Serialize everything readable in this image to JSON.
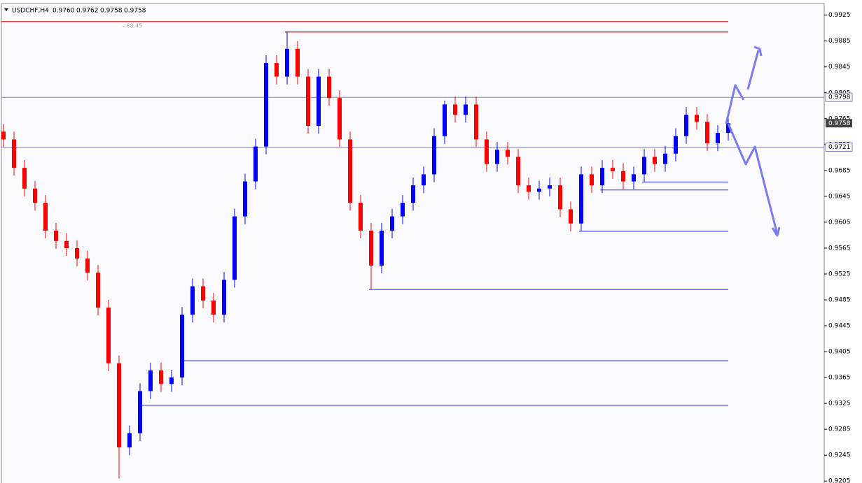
{
  "chart_data": {
    "type": "candlestick",
    "symbol": "USDCHF,H4",
    "quote": [
      "0.9760",
      "0.9762",
      "0.9758",
      "0.9758"
    ],
    "annotation": "- 88.45",
    "up_color": "#0000ff",
    "down_color": "#ff0000",
    "ylim": [
      0.9202,
      0.9943
    ],
    "yticks": [
      0.9925,
      0.9885,
      0.9845,
      0.9805,
      0.9765,
      0.9725,
      0.9685,
      0.9645,
      0.9605,
      0.9565,
      0.9525,
      0.9485,
      0.9445,
      0.9405,
      0.9365,
      0.9325,
      0.9285,
      0.9245,
      0.9205
    ],
    "open": [
      0.9745,
      0.9733,
      0.9689,
      0.9657,
      0.9635,
      0.9592,
      0.9576,
      0.9565,
      0.9549,
      0.9527,
      0.9473,
      0.9387,
      0.9257,
      0.9279,
      0.9344,
      0.9376,
      0.9355,
      0.9365,
      0.9462,
      0.9506,
      0.9484,
      0.9462,
      0.9516,
      0.9614,
      0.9668,
      0.9722,
      0.9851,
      0.983,
      0.9873,
      0.983,
      0.9754,
      0.983,
      0.9797,
      0.9733,
      0.9635,
      0.9592,
      0.9538,
      0.9592,
      0.9614,
      0.9635,
      0.9662,
      0.9679,
      0.9738,
      0.9787,
      0.9771,
      0.9787,
      0.9733,
      0.9695,
      0.9717,
      0.9706,
      0.9662,
      0.9652,
      0.9657,
      0.9662,
      0.9625,
      0.9603,
      0.9679,
      0.9662,
      0.9689,
      0.9684,
      0.9668,
      0.9679,
      0.9706,
      0.9695,
      0.9711,
      0.9738,
      0.9771,
      0.976,
      0.9727,
      0.9743
    ],
    "high": [
      0.9757,
      0.9745,
      0.9701,
      0.9669,
      0.9647,
      0.9604,
      0.9588,
      0.9577,
      0.9561,
      0.9539,
      0.9485,
      0.9399,
      0.9291,
      0.9356,
      0.9388,
      0.9388,
      0.9377,
      0.9474,
      0.9518,
      0.9518,
      0.9496,
      0.9528,
      0.9626,
      0.968,
      0.9734,
      0.9863,
      0.9863,
      0.9899,
      0.9885,
      0.9842,
      0.9842,
      0.9842,
      0.9809,
      0.9745,
      0.9647,
      0.9604,
      0.9604,
      0.9626,
      0.9647,
      0.9674,
      0.9691,
      0.975,
      0.9793,
      0.9799,
      0.9799,
      0.9799,
      0.9745,
      0.9729,
      0.9729,
      0.9718,
      0.9674,
      0.9669,
      0.9674,
      0.9674,
      0.9637,
      0.9691,
      0.9691,
      0.9701,
      0.9701,
      0.9696,
      0.9691,
      0.9718,
      0.9718,
      0.9723,
      0.975,
      0.9783,
      0.9783,
      0.9772,
      0.9755,
      0.977
    ],
    "low": [
      0.9721,
      0.9677,
      0.9645,
      0.9623,
      0.958,
      0.9564,
      0.9553,
      0.9537,
      0.9515,
      0.9461,
      0.9375,
      0.9209,
      0.9245,
      0.9267,
      0.9332,
      0.9343,
      0.9343,
      0.9353,
      0.945,
      0.9472,
      0.945,
      0.945,
      0.9504,
      0.9602,
      0.9656,
      0.971,
      0.9818,
      0.9818,
      0.9818,
      0.9742,
      0.9742,
      0.9785,
      0.9721,
      0.9623,
      0.958,
      0.9501,
      0.9526,
      0.958,
      0.9602,
      0.9623,
      0.965,
      0.9667,
      0.9726,
      0.9759,
      0.9759,
      0.9721,
      0.9683,
      0.9683,
      0.9694,
      0.965,
      0.964,
      0.964,
      0.9645,
      0.9613,
      0.9591,
      0.9591,
      0.965,
      0.965,
      0.9672,
      0.9656,
      0.9656,
      0.9667,
      0.9683,
      0.9683,
      0.9699,
      0.9726,
      0.9748,
      0.9715,
      0.9715,
      0.9731
    ],
    "close": [
      0.9733,
      0.9689,
      0.9657,
      0.9635,
      0.9592,
      0.9576,
      0.9565,
      0.9549,
      0.9527,
      0.9473,
      0.9387,
      0.9257,
      0.9279,
      0.9344,
      0.9376,
      0.9355,
      0.9365,
      0.9462,
      0.9506,
      0.9484,
      0.9462,
      0.9516,
      0.9614,
      0.9668,
      0.9722,
      0.9851,
      0.983,
      0.9873,
      0.983,
      0.9754,
      0.983,
      0.9797,
      0.9733,
      0.9635,
      0.9592,
      0.9538,
      0.9592,
      0.9614,
      0.9635,
      0.9662,
      0.9679,
      0.9738,
      0.9787,
      0.9771,
      0.9787,
      0.9733,
      0.9695,
      0.9717,
      0.9706,
      0.9662,
      0.9652,
      0.9657,
      0.9662,
      0.9625,
      0.9603,
      0.9679,
      0.9662,
      0.9689,
      0.9684,
      0.9668,
      0.9679,
      0.9706,
      0.9695,
      0.9711,
      0.9738,
      0.9771,
      0.976,
      0.9727,
      0.9743,
      0.9758
    ],
    "levels": [
      {
        "value": 0.9915,
        "color": "#e03030"
      },
      {
        "value": 0.9899,
        "color": "#e03030"
      },
      {
        "value": 0.9667,
        "color": "#7070f0"
      },
      {
        "value": 0.9655,
        "color": "#7070f0"
      },
      {
        "value": 0.9591,
        "color": "#7070f0"
      },
      {
        "value": 0.9501,
        "color": "#7070f0"
      },
      {
        "value": 0.9391,
        "color": "#7070f0"
      },
      {
        "value": 0.9322,
        "color": "#7070f0"
      }
    ],
    "price_lines": [
      {
        "value": 0.9798,
        "color": "#8080c0"
      },
      {
        "value": 0.9721,
        "color": "#8080c0"
      }
    ],
    "last_price": 0.9758
  }
}
